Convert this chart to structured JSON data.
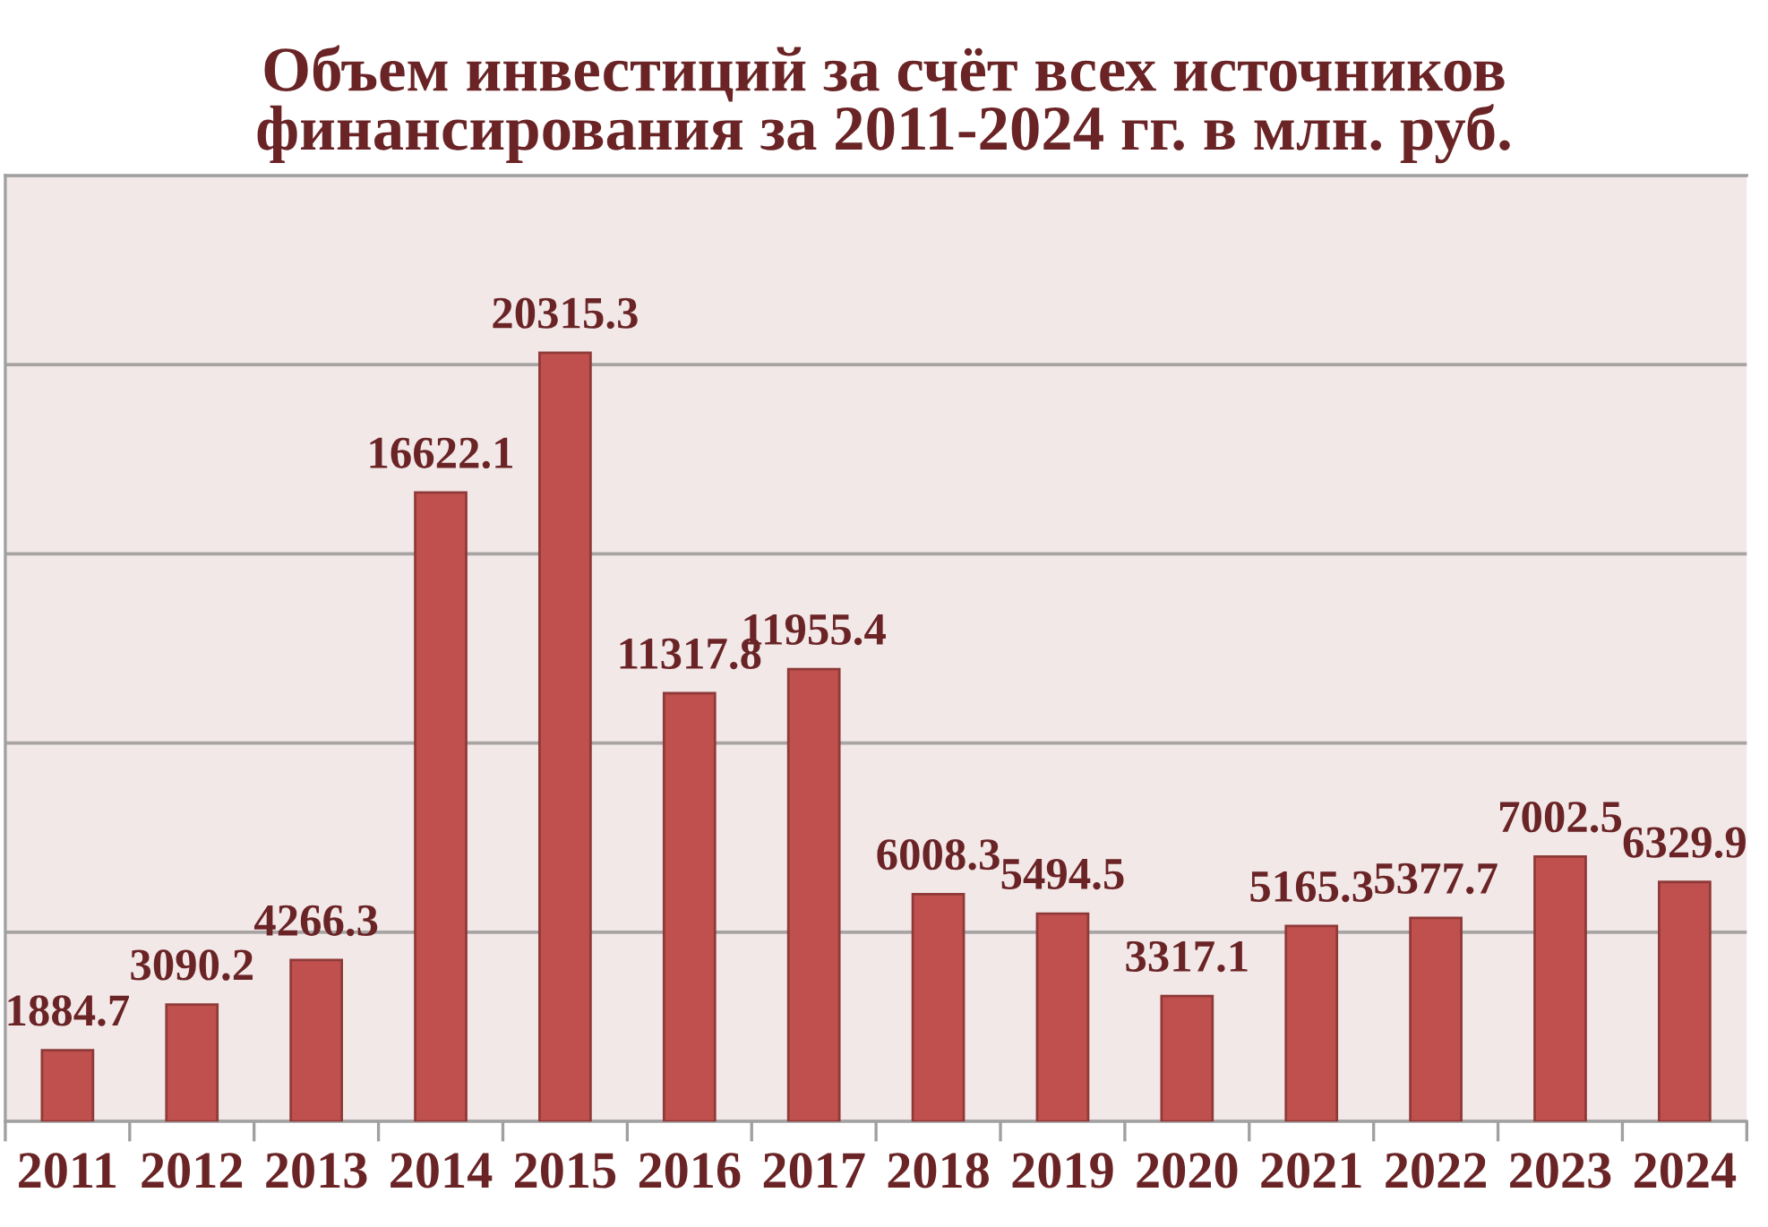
{
  "chart_data": {
    "type": "bar",
    "title": "Объем инвестиций за счёт всех источников\nфинансирования за 2011-2024 гг. в млн. руб.",
    "categories": [
      "2011",
      "2012",
      "2013",
      "2014",
      "2015",
      "2016",
      "2017",
      "2018",
      "2019",
      "2020",
      "2021",
      "2022",
      "2023",
      "2024"
    ],
    "values": [
      1884.7,
      3090.2,
      4266.3,
      16622.1,
      20315.3,
      11317.8,
      11955.4,
      6008.3,
      5494.5,
      3317.1,
      5165.3,
      5377.7,
      7002.5,
      6329.9
    ],
    "color": "#c0504d",
    "ylim": [
      0,
      25000
    ],
    "yticks": [
      {
        "value": 0,
        "label": null
      },
      {
        "value": 5000,
        "label": null
      },
      {
        "value": 10000,
        "label": null
      },
      {
        "value": 15000,
        "label": null
      },
      {
        "value": 20000,
        "label": null
      },
      {
        "value": 25000,
        "label": null
      }
    ],
    "grid": "y",
    "tick_labels": "x",
    "data_labels": true
  }
}
